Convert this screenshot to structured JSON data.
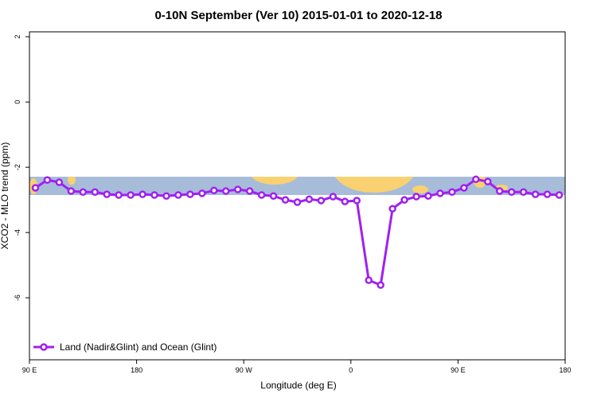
{
  "chart_data": {
    "type": "line",
    "title": "0-10N September (Ver 10)   2015-01-01 to 2020-12-18",
    "x_label": "Longitude (deg E)",
    "y_label": "XCO2 - MLO trend (ppm)",
    "x": [
      95,
      105,
      115,
      125,
      135,
      145,
      155,
      165,
      175,
      185,
      195,
      205,
      215,
      225,
      235,
      245,
      255,
      265,
      275,
      285,
      295,
      305,
      315,
      325,
      335,
      345,
      355,
      365,
      375,
      385,
      395,
      405,
      415,
      425,
      435,
      445,
      455,
      465,
      475,
      485,
      495,
      505,
      515,
      525,
      535
    ],
    "series": [
      {
        "name": "Land (Nadir&Glint) and Ocean (Glint)",
        "color": "#a020f0",
        "values": [
          -2.63,
          -2.39,
          -2.46,
          -2.73,
          -2.76,
          -2.76,
          -2.83,
          -2.85,
          -2.85,
          -2.83,
          -2.85,
          -2.88,
          -2.85,
          -2.83,
          -2.8,
          -2.71,
          -2.73,
          -2.68,
          -2.73,
          -2.85,
          -2.88,
          -3.0,
          -3.07,
          -2.98,
          -3.02,
          -2.9,
          -3.05,
          -3.02,
          -5.46,
          -5.61,
          -3.27,
          -3.0,
          -2.9,
          -2.88,
          -2.8,
          -2.76,
          -2.63,
          -2.37,
          -2.44,
          -2.73,
          -2.76,
          -2.76,
          -2.83,
          -2.83,
          -2.85
        ]
      }
    ],
    "xlim": [
      90,
      540
    ],
    "xticks": [
      {
        "value": 90,
        "label": "90 E"
      },
      180,
      {
        "value": 270,
        "label": "90 W"
      },
      {
        "value": 360,
        "label": "0"
      },
      {
        "value": 450,
        "label": "90 E"
      },
      {
        "value": 540,
        "label": "180"
      }
    ],
    "ylim": [
      -7.9,
      2.15
    ],
    "yticks": [
      2,
      0,
      -2,
      -4,
      -6
    ],
    "legend": "bottom-left"
  }
}
